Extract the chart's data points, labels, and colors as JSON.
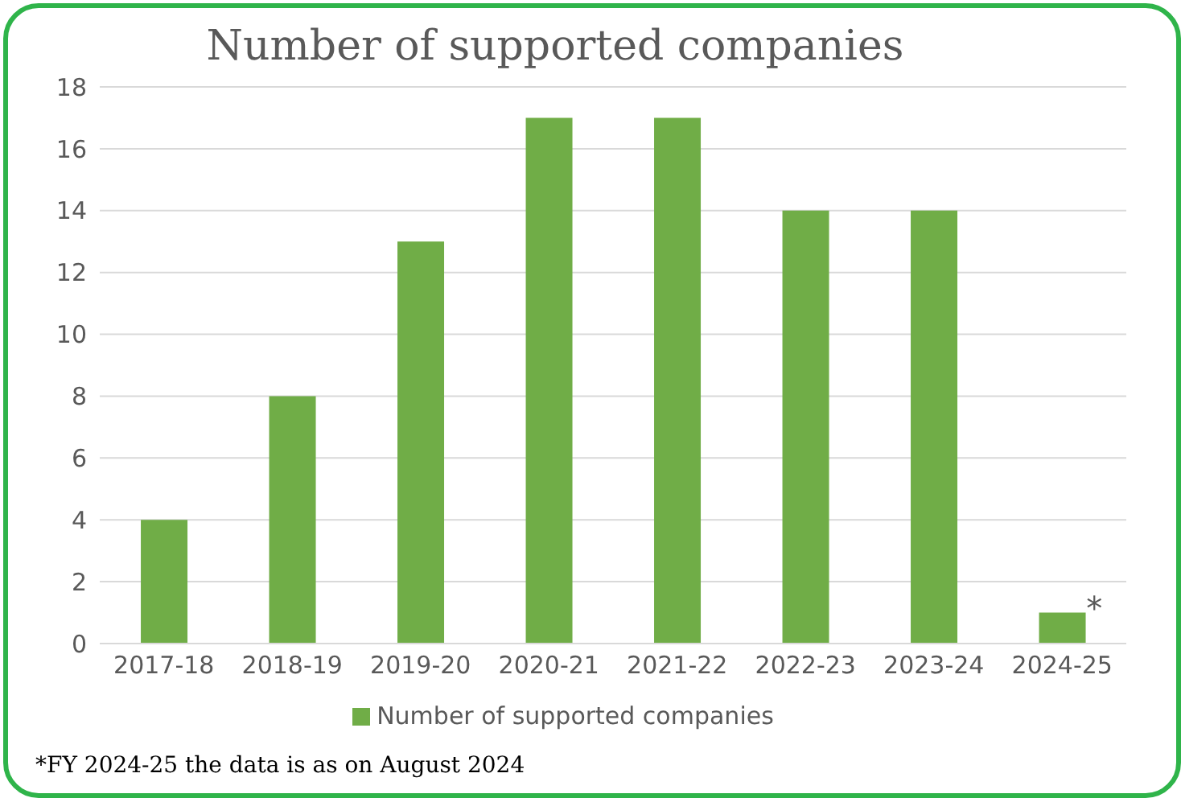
{
  "chart_data": {
    "type": "bar",
    "title": "Number of supported companies",
    "categories": [
      "2017-18",
      "2018-19",
      "2019-20",
      "2020-21",
      "2021-22",
      "2022-23",
      "2023-24",
      "2024-25"
    ],
    "series": [
      {
        "name": "Number of supported companies",
        "color": "#70ad47",
        "values": [
          4,
          8,
          13,
          17,
          17,
          14,
          14,
          1
        ]
      }
    ],
    "ylim": [
      0,
      18
    ],
    "yticks": [
      0,
      2,
      4,
      6,
      8,
      10,
      12,
      14,
      16,
      18
    ],
    "grid": "y",
    "legend": "bottom",
    "annotations": [
      {
        "text": "*",
        "x": "2024-25",
        "y": 1
      },
      "*FY 2024-25 the data is as on August 2024"
    ]
  }
}
